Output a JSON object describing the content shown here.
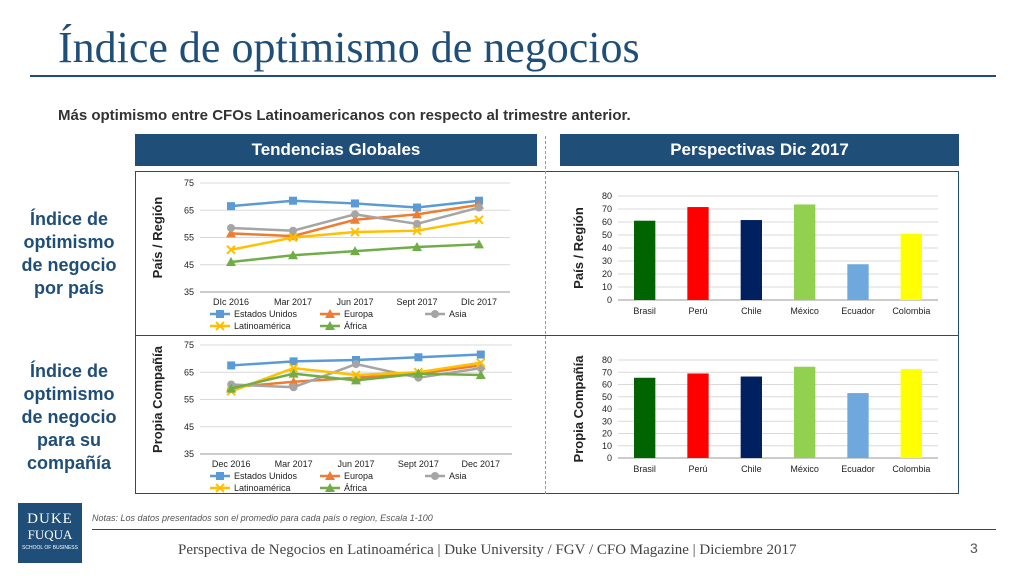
{
  "title": "Índice de optimismo de negocios",
  "subtitle": "Más optimismo entre CFOs Latinoamericanos con respecto al trimestre anterior.",
  "headers": {
    "left": "Tendencias Globales",
    "right": "Perspectivas Dic 2017"
  },
  "row_labels": {
    "top": [
      "Índice de",
      "optimismo",
      "de negocio",
      "por país"
    ],
    "bottom": [
      "Índice de",
      "optimismo",
      "de negocio",
      "para su",
      "compañía"
    ]
  },
  "notes": "Notas:  Los datos presentados son el promedio para cada país o region, Escala 1-100",
  "footer": "Perspectiva de Negocios en Latinoamérica | Duke University / FGV / CFO Magazine | Diciembre 2017",
  "page_number": "3",
  "logo": {
    "line1": "DUKE",
    "line2": "FUQUA",
    "line3": "SCHOOL OF BUSINESS"
  },
  "colors": {
    "brand": "#1f4e79"
  },
  "chart_data": [
    {
      "type": "line",
      "ylabel": "País / Región",
      "categories": [
        "DIc 2016",
        "Mar 2017",
        "Jun 2017",
        "Sept 2017",
        "DIc 2017"
      ],
      "ylim": [
        35,
        75
      ],
      "yticks": [
        35,
        45,
        55,
        65,
        75
      ],
      "legend": "bottom",
      "series": [
        {
          "name": "Estados Unidos",
          "color": "#5b9bd5",
          "marker": "square",
          "values": [
            66.5,
            68.5,
            67.5,
            66,
            68.5
          ]
        },
        {
          "name": "Europa",
          "color": "#ed7d31",
          "marker": "triangle",
          "values": [
            56.5,
            55.5,
            61.5,
            63.5,
            67
          ]
        },
        {
          "name": "Asia",
          "color": "#a5a5a5",
          "marker": "circle",
          "values": [
            58.5,
            57.5,
            63.5,
            60,
            66
          ]
        },
        {
          "name": "Latinoamérica",
          "color": "#ffc000",
          "marker": "x",
          "values": [
            50.5,
            55,
            57,
            57.5,
            61.5
          ]
        },
        {
          "name": "África",
          "color": "#70ad47",
          "marker": "triangle",
          "values": [
            46,
            48.5,
            50,
            51.5,
            52.5
          ]
        }
      ]
    },
    {
      "type": "line",
      "ylabel": "Propia Compañía",
      "categories": [
        "Dec 2016",
        "Mar 2017",
        "Jun 2017",
        "Sept 2017",
        "Dec 2017"
      ],
      "ylim": [
        35,
        75
      ],
      "yticks": [
        35,
        45,
        55,
        65,
        75
      ],
      "legend": "bottom",
      "series": [
        {
          "name": "Estados Unidos",
          "color": "#5b9bd5",
          "marker": "square",
          "values": [
            67.5,
            69,
            69.5,
            70.5,
            71.5
          ]
        },
        {
          "name": "Europa",
          "color": "#ed7d31",
          "marker": "triangle",
          "values": [
            59.5,
            61.5,
            63,
            64.5,
            67.5
          ]
        },
        {
          "name": "Asia",
          "color": "#a5a5a5",
          "marker": "circle",
          "values": [
            60.5,
            59.5,
            68,
            63,
            66.5
          ]
        },
        {
          "name": "Latinoamérica",
          "color": "#ffc000",
          "marker": "x",
          "values": [
            58,
            66.5,
            64,
            65,
            68.5
          ]
        },
        {
          "name": "África",
          "color": "#70ad47",
          "marker": "triangle",
          "values": [
            59,
            64.5,
            62,
            64.5,
            64
          ]
        }
      ]
    },
    {
      "type": "bar",
      "ylabel": "País / Región",
      "categories": [
        "Brasil",
        "Perú",
        "Chile",
        "México",
        "Ecuador",
        "Colombia"
      ],
      "values": [
        61,
        71.5,
        61.5,
        73.5,
        27.5,
        51
      ],
      "colors": [
        "#006400",
        "#ff0000",
        "#002060",
        "#92d050",
        "#6fa8dc",
        "#ffff00"
      ],
      "ylim": [
        0,
        80
      ],
      "yticks": [
        0,
        10,
        20,
        30,
        40,
        50,
        60,
        70,
        80
      ]
    },
    {
      "type": "bar",
      "ylabel": "Propia Compañía",
      "categories": [
        "Brasil",
        "Perú",
        "Chile",
        "México",
        "Ecuador",
        "Colombia"
      ],
      "values": [
        65.5,
        69,
        66.5,
        74.5,
        53,
        72.5
      ],
      "colors": [
        "#006400",
        "#ff0000",
        "#002060",
        "#92d050",
        "#6fa8dc",
        "#ffff00"
      ],
      "ylim": [
        0,
        80
      ],
      "yticks": [
        0,
        10,
        20,
        30,
        40,
        50,
        60,
        70,
        80
      ]
    }
  ]
}
